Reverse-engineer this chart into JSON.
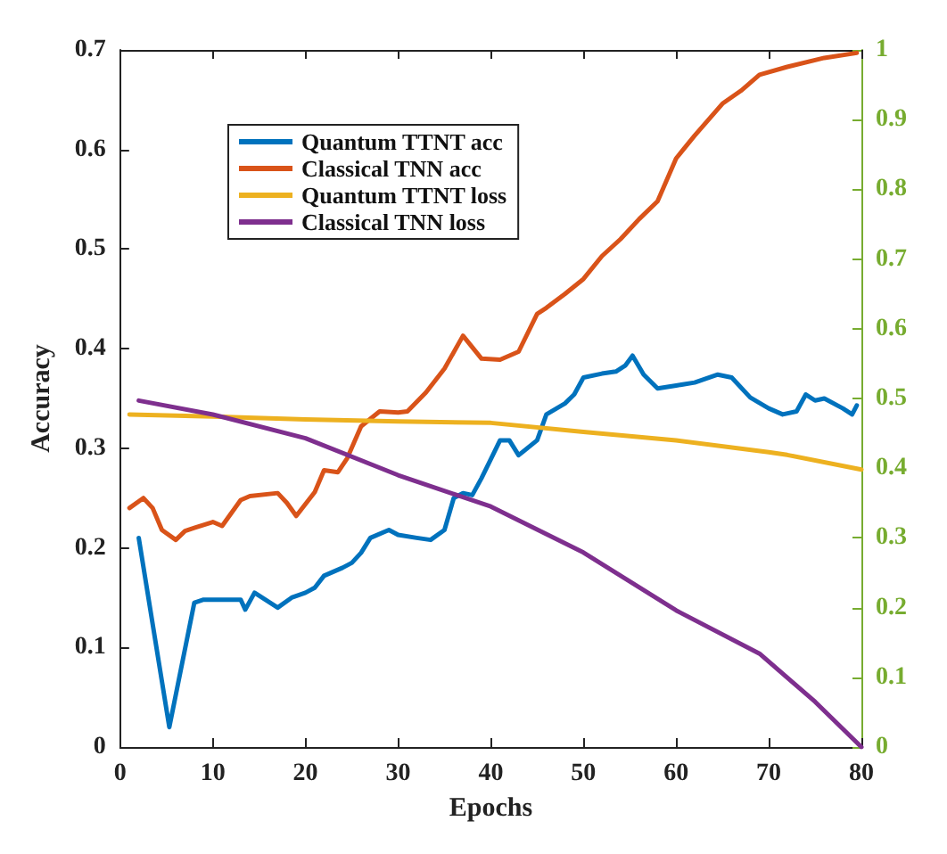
{
  "chart_data": {
    "type": "line",
    "xlabel": "Epochs",
    "ylabel": "Accuracy",
    "xlim": [
      0,
      80
    ],
    "xticks": [
      0,
      10,
      20,
      30,
      40,
      50,
      60,
      70,
      80
    ],
    "ylim": [
      0,
      0.7
    ],
    "yticks": [
      0,
      0.1,
      0.2,
      0.3,
      0.4,
      0.5,
      0.6,
      0.7
    ],
    "y2lim": [
      0,
      1
    ],
    "y2ticks": [
      0,
      0.1,
      0.2,
      0.3,
      0.4,
      0.5,
      0.6,
      0.7,
      0.8,
      0.9,
      1
    ],
    "legend": "top left",
    "grid": false,
    "marker": "none",
    "line_style": "solid",
    "series": [
      {
        "name": "Quantum TTNT acc",
        "color": "#0072bd",
        "x": [
          2,
          5.3,
          8,
          9,
          13,
          13.5,
          14.5,
          17,
          18.5,
          20,
          21,
          22,
          24,
          25,
          26,
          27,
          29,
          30,
          32,
          33.5,
          35,
          36,
          37,
          38,
          39,
          41,
          42,
          43,
          45,
          46,
          48,
          49,
          50,
          52,
          53.5,
          54.5,
          55.3,
          56.5,
          58,
          60,
          62,
          64.5,
          66,
          68,
          70,
          71.5,
          73,
          74,
          75,
          76,
          78,
          79,
          79.5
        ],
        "values": [
          0.21,
          0.02,
          0.145,
          0.148,
          0.148,
          0.138,
          0.155,
          0.14,
          0.15,
          0.155,
          0.16,
          0.172,
          0.18,
          0.185,
          0.195,
          0.21,
          0.218,
          0.213,
          0.21,
          0.208,
          0.218,
          0.25,
          0.255,
          0.253,
          0.27,
          0.308,
          0.308,
          0.293,
          0.308,
          0.334,
          0.345,
          0.354,
          0.371,
          0.375,
          0.377,
          0.383,
          0.393,
          0.374,
          0.36,
          0.363,
          0.366,
          0.374,
          0.371,
          0.351,
          0.34,
          0.334,
          0.337,
          0.354,
          0.348,
          0.35,
          0.34,
          0.334,
          0.343
        ]
      },
      {
        "name": "Classical TNN acc",
        "color": "#d95319",
        "x": [
          1,
          2.5,
          3.5,
          4.5,
          6,
          7,
          8,
          10,
          11,
          12,
          13,
          14,
          17,
          18,
          19,
          21,
          22,
          23.5,
          24.5,
          26,
          28,
          30,
          31,
          33,
          35,
          37,
          39,
          41,
          43,
          45,
          46,
          48,
          50,
          52,
          54,
          56,
          58,
          60,
          62,
          65,
          67,
          69,
          72,
          76,
          79.5
        ],
        "values": [
          0.24,
          0.25,
          0.24,
          0.218,
          0.208,
          0.217,
          0.22,
          0.226,
          0.222,
          0.235,
          0.248,
          0.252,
          0.255,
          0.245,
          0.232,
          0.256,
          0.278,
          0.276,
          0.29,
          0.322,
          0.337,
          0.336,
          0.337,
          0.356,
          0.38,
          0.413,
          0.39,
          0.389,
          0.397,
          0.435,
          0.441,
          0.455,
          0.47,
          0.493,
          0.51,
          0.53,
          0.548,
          0.591,
          0.614,
          0.646,
          0.659,
          0.675,
          0.683,
          0.692,
          0.697
        ]
      },
      {
        "name": "Quantum TTNT loss",
        "color": "#edb120",
        "axis": "y2",
        "x": [
          1,
          10,
          20,
          30,
          40,
          50,
          60,
          70,
          72,
          80
        ],
        "values": [
          0.477,
          0.474,
          0.47,
          0.467,
          0.465,
          0.452,
          0.44,
          0.423,
          0.419,
          0.398
        ]
      },
      {
        "name": "Classical TNN loss",
        "color": "#7e2f8e",
        "axis": "y2",
        "x": [
          2,
          10,
          20,
          30,
          40,
          50,
          60,
          69,
          75,
          80
        ],
        "values": [
          0.497,
          0.477,
          0.443,
          0.39,
          0.345,
          0.279,
          0.196,
          0.134,
          0.065,
          0
        ]
      }
    ]
  }
}
